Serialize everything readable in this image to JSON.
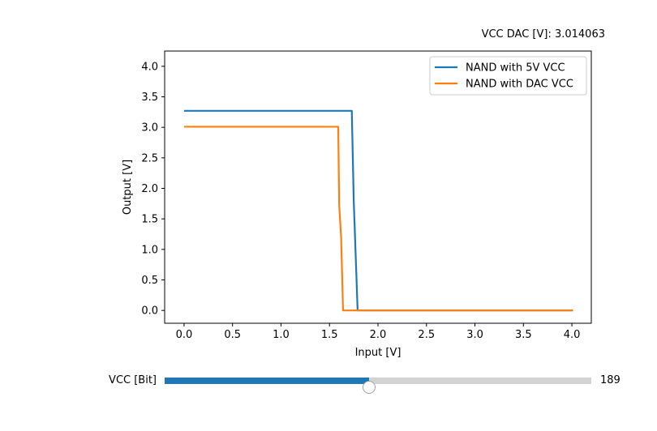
{
  "info_text": "VCC DAC [V]: 3.014063",
  "slider": {
    "label": "VCC [Bit]",
    "value": 189,
    "max": 394
  },
  "colors": {
    "series_5v": "#1f77b4",
    "series_dac": "#ff7f0e",
    "slider_fill": "#1f77b4",
    "slider_track": "#d3d3d3"
  },
  "chart_data": {
    "type": "line",
    "title": "",
    "xlabel": "Input [V]",
    "ylabel": "Output [V]",
    "xlim": [
      -0.2,
      4.2
    ],
    "ylim": [
      -0.21,
      4.25
    ],
    "xticks": [
      "0.0",
      "0.5",
      "1.0",
      "1.5",
      "2.0",
      "2.5",
      "3.0",
      "3.5",
      "4.0"
    ],
    "yticks": [
      "0.0",
      "0.5",
      "1.0",
      "1.5",
      "2.0",
      "2.5",
      "3.0",
      "3.5",
      "4.0"
    ],
    "grid": false,
    "legend_position": "top-right",
    "series": [
      {
        "name": "NAND with 5V VCC",
        "color": "#1f77b4",
        "x": [
          0.0,
          1.73,
          1.75,
          1.79,
          2.0,
          4.01
        ],
        "y": [
          3.27,
          3.27,
          1.8,
          0.0,
          0.0,
          0.0
        ]
      },
      {
        "name": "NAND with DAC VCC",
        "color": "#ff7f0e",
        "x": [
          0.0,
          1.59,
          1.6,
          1.62,
          1.64,
          2.0,
          4.01
        ],
        "y": [
          3.01,
          3.01,
          1.72,
          1.2,
          0.0,
          0.0,
          0.0
        ]
      }
    ]
  }
}
